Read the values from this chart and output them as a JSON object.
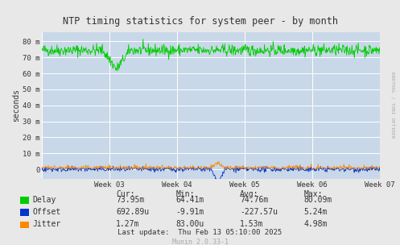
{
  "title": "NTP timing statistics for system peer - by month",
  "ylabel": "seconds",
  "background_color": "#e8e8e8",
  "plot_bg_color": "#c8d8e8",
  "grid_color": "#ffffff",
  "y_tick_labels": [
    "80 m",
    "70 m",
    "60 m",
    "50 m",
    "40 m",
    "30 m",
    "20 m",
    "10 m",
    "0"
  ],
  "y_tick_values": [
    0.08,
    0.07,
    0.06,
    0.05,
    0.04,
    0.03,
    0.02,
    0.01,
    0.0
  ],
  "ylim": [
    -0.006,
    0.086
  ],
  "delay_color": "#00cc00",
  "offset_color": "#0033cc",
  "jitter_color": "#ff8800",
  "legend_labels": [
    "Delay",
    "Offset",
    "Jitter"
  ],
  "stats_header": [
    "Cur:",
    "Min:",
    "Avg:",
    "Max:"
  ],
  "stats_delay": [
    "73.95m",
    "64.41m",
    "74.76m",
    "80.09m"
  ],
  "stats_offset": [
    "692.89u",
    "-9.91m",
    "-227.57u",
    "5.24m"
  ],
  "stats_jitter": [
    "1.27m",
    "83.00u",
    "1.53m",
    "4.98m"
  ],
  "last_update": "Last update:  Thu Feb 13 05:10:00 2025",
  "munin_label": "Munin 2.0.33-1",
  "rrdtool_label": "RRDTOOL / TOBI OETIKER"
}
